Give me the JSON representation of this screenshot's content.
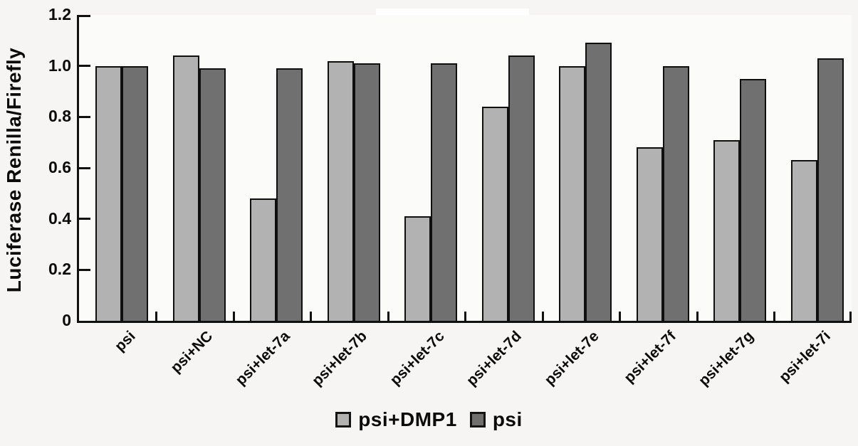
{
  "chart_data": {
    "type": "bar",
    "title": "",
    "xlabel": "",
    "ylabel": "Luciferase Renilla/Firefly",
    "ylim": [
      0,
      1.2
    ],
    "yticks": [
      0,
      0.2,
      0.4,
      0.6,
      0.8,
      1.0,
      1.2
    ],
    "ytick_labels": [
      "0",
      "0.2",
      "0.4",
      "0.6",
      "0.8",
      "1.0",
      "1.2"
    ],
    "grid": false,
    "legend_position": "bottom",
    "categories": [
      "psi",
      "psi+NC",
      "psi+let-7a",
      "psi+let-7b",
      "psi+let-7c",
      "psi+let-7d",
      "psi+let-7e",
      "psi+let-7f",
      "psi+let-7g",
      "psi+let-7i"
    ],
    "series": [
      {
        "name": "psi+DMP1",
        "color": "#b2b2b2",
        "values": [
          1.0,
          1.04,
          0.48,
          1.02,
          0.41,
          0.84,
          1.0,
          0.68,
          0.71,
          0.63
        ]
      },
      {
        "name": "psi",
        "color": "#707070",
        "values": [
          1.0,
          0.99,
          0.99,
          1.01,
          1.01,
          1.04,
          1.09,
          1.0,
          0.95,
          1.03
        ]
      }
    ],
    "bar_outline_color": "#0f0f0f",
    "axis_color": "#101010"
  }
}
